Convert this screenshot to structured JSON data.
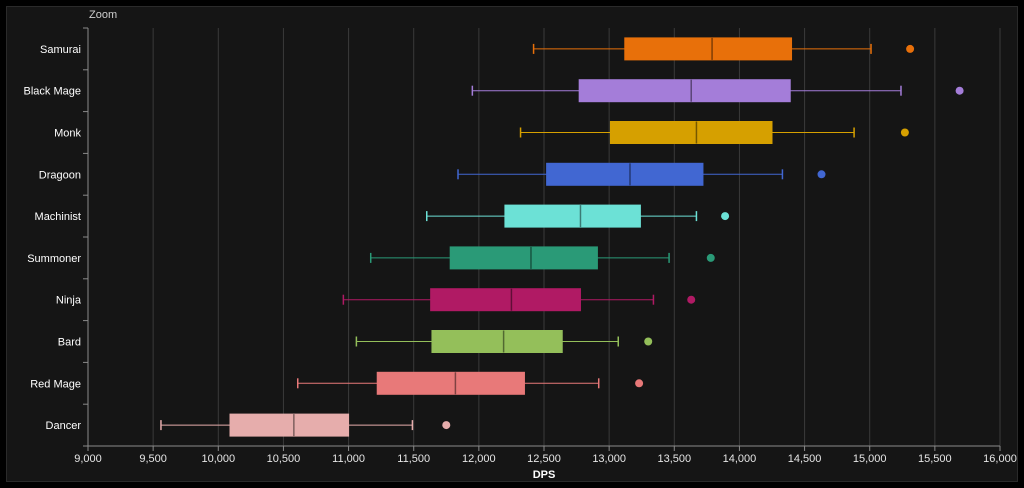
{
  "zoom_label": "Zoom",
  "chart_data": {
    "type": "boxplot",
    "orientation": "horizontal",
    "xlabel": "DPS",
    "ylabel": "",
    "xlim": [
      9000,
      16000
    ],
    "xticks": [
      9000,
      9500,
      10000,
      10500,
      11000,
      11500,
      12000,
      12500,
      13000,
      13500,
      14000,
      14500,
      15000,
      15500,
      16000
    ],
    "xtick_labels": [
      "9,000",
      "9,500",
      "10,000",
      "10,500",
      "11,000",
      "11,500",
      "12,000",
      "12,500",
      "13,000",
      "13,500",
      "14,000",
      "14,500",
      "15,000",
      "15,500",
      "16,000"
    ],
    "grid": true,
    "categories": [
      "Samurai",
      "Black Mage",
      "Monk",
      "Dragoon",
      "Machinist",
      "Summoner",
      "Ninja",
      "Bard",
      "Red Mage",
      "Dancer"
    ],
    "series": [
      {
        "category": "Samurai",
        "color": "#e8700a",
        "min": 12420,
        "q1": 13120,
        "median": 13790,
        "q3": 14400,
        "max": 15010,
        "outliers": [
          15310
        ]
      },
      {
        "category": "Black Mage",
        "color": "#a47dd9",
        "min": 11950,
        "q1": 12770,
        "median": 13630,
        "q3": 14390,
        "max": 15240,
        "outliers": [
          15690
        ]
      },
      {
        "category": "Monk",
        "color": "#d6a000",
        "min": 12320,
        "q1": 13010,
        "median": 13670,
        "q3": 14250,
        "max": 14880,
        "outliers": [
          15270
        ]
      },
      {
        "category": "Dragoon",
        "color": "#4167d2",
        "min": 11840,
        "q1": 12520,
        "median": 13160,
        "q3": 13720,
        "max": 14330,
        "outliers": [
          14630
        ]
      },
      {
        "category": "Machinist",
        "color": "#6ce1d6",
        "min": 11600,
        "q1": 12200,
        "median": 12780,
        "q3": 13240,
        "max": 13670,
        "outliers": [
          13890
        ]
      },
      {
        "category": "Summoner",
        "color": "#2a9a77",
        "min": 11170,
        "q1": 11780,
        "median": 12400,
        "q3": 12910,
        "max": 13460,
        "outliers": [
          13780
        ]
      },
      {
        "category": "Ninja",
        "color": "#b01a64",
        "min": 10960,
        "q1": 11630,
        "median": 12250,
        "q3": 12780,
        "max": 13340,
        "outliers": [
          13630
        ]
      },
      {
        "category": "Bard",
        "color": "#94bf5a",
        "min": 11060,
        "q1": 11640,
        "median": 12190,
        "q3": 12640,
        "max": 13070,
        "outliers": [
          13300
        ]
      },
      {
        "category": "Red Mage",
        "color": "#e87979",
        "min": 10610,
        "q1": 11220,
        "median": 11820,
        "q3": 12350,
        "max": 12920,
        "outliers": [
          13230
        ]
      },
      {
        "category": "Dancer",
        "color": "#e6adac",
        "min": 9560,
        "q1": 10090,
        "median": 10580,
        "q3": 11000,
        "max": 11490,
        "outliers": [
          11750
        ]
      }
    ]
  }
}
